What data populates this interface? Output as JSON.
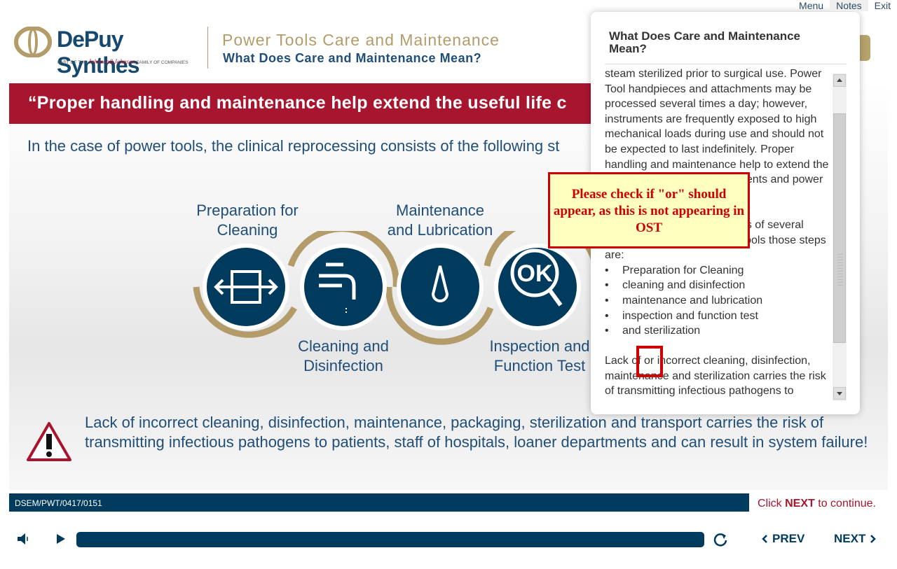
{
  "toplinks": {
    "menu": "Menu",
    "notes": "Notes",
    "exit": "Exit"
  },
  "brand": {
    "name": "DePuy Synthes",
    "sub_prefix": "PART OF THE",
    "sub_jj": "Johnson&Johnson",
    "sub_suffix": "FAMILY OF COMPANIES"
  },
  "header": {
    "course_title": "Power Tools Care and Maintenance",
    "page_title": "What Does Care and Maintenance Mean?"
  },
  "content": {
    "quote": "“Proper handling and maintenance help extend the useful life c",
    "intro": "In the case of power tools, the clinical reprocessing consists of the following st",
    "steps": [
      {
        "label_1": "Preparation for",
        "label_2": "Cleaning",
        "icon": "arrows-box-icon"
      },
      {
        "label_1": "Cleaning and",
        "label_2": "Disinfection",
        "icon": "faucet-icon"
      },
      {
        "label_1": "Maintenance",
        "label_2": "and Lubrication",
        "icon": "drop-icon"
      },
      {
        "label_1": "Inspection and",
        "label_2": "Function Test",
        "icon": "ok-magnifier-icon"
      }
    ],
    "warning": "Lack of incorrect cleaning, disinfection, maintenance, packaging, sterilization and transport carries the risk of transmitting infectious pathogens to patients, staff of hospitals, loaner departments and can result in system failure!"
  },
  "footer": {
    "code": "DSEM/PWT/0417/0151",
    "click_prefix": "Click",
    "click_next": "NEXT",
    "click_suffix": "to continue."
  },
  "player": {
    "prev": "PREV",
    "next": "NEXT"
  },
  "notes": {
    "title": "What Does Care and Maintenance Mean?",
    "para1": "steam sterilized prior to surgical use. Power Tool handpieces and attachments may be processed several times a day; however, instruments are frequently exposed to high mechanical loads during use and should not be expected to last indefinitely. Proper handling and maintenance help to extend the useful life of surgical instruments and power tools.",
    "para2": "Clinical reprocessing consists of several steps. In the case of power tools those steps are:",
    "bullets": [
      "Preparation for Cleaning",
      "cleaning and disinfection",
      "maintenance and lubrication",
      "inspection and function test",
      "and sterilization"
    ],
    "para3": "Lack of or incorrect cleaning, disinfection, maintenance and sterilization carries the risk of transmitting infectious pathogens to"
  },
  "review_comment": "Please check if \"or\" should appear, as this is not appearing in OST",
  "colors": {
    "brand_blue": "#003a5c",
    "gold": "#b39c6a",
    "accent_red": "#a7152e",
    "comment_red": "#d10000"
  }
}
